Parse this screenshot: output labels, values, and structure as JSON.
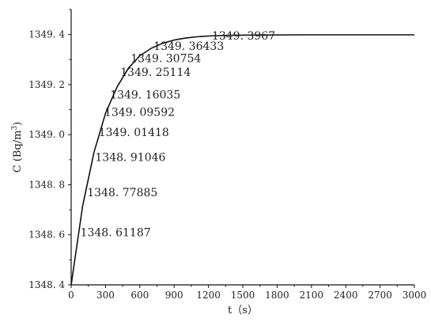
{
  "chart_data": {
    "type": "line",
    "title": "",
    "xlabel": "t（s）",
    "ylabel": "C (Bq/m³)",
    "ylabel_parts": {
      "prefix": "C (Bq/m",
      "sup": "3",
      "suffix": ")"
    },
    "xlim": [
      0,
      3000
    ],
    "ylim": [
      1348.4,
      1349.5
    ],
    "x_ticks": [
      0,
      300,
      600,
      900,
      1200,
      1500,
      1800,
      2100,
      2400,
      2700,
      3000
    ],
    "y_ticks": [
      1348.4,
      1348.6,
      1348.8,
      1349.0,
      1349.2,
      1349.4
    ],
    "x_tick_labels": [
      "0",
      "300",
      "600",
      "900",
      "1200",
      "1500",
      "1800",
      "2100",
      "2400",
      "2700",
      "3000"
    ],
    "y_tick_labels": [
      "1348. 4",
      "1348. 6",
      "1348. 8",
      "1349. 0",
      "1349. 2",
      "1349. 4"
    ],
    "grid": false,
    "legend": "none",
    "line_color": "#111111",
    "series": [
      {
        "x": [
          0,
          100,
          200,
          300,
          400,
          500,
          600,
          700,
          800,
          900,
          1000,
          1100,
          1200,
          1400,
          1600,
          2000,
          2500,
          3000
        ],
        "y": [
          1348.4,
          1348.715,
          1348.93,
          1349.085,
          1349.19,
          1349.265,
          1349.315,
          1349.345,
          1349.365,
          1349.378,
          1349.386,
          1349.391,
          1349.394,
          1349.397,
          1349.398,
          1349.399,
          1349.399,
          1349.399
        ]
      }
    ],
    "annotations": [
      {
        "text": "1348. 61187",
        "x": 80,
        "y": 1348.61
      },
      {
        "text": "1348. 77885",
        "x": 140,
        "y": 1348.77
      },
      {
        "text": "1348. 91046",
        "x": 210,
        "y": 1348.91
      },
      {
        "text": "1349. 01418",
        "x": 240,
        "y": 1349.01
      },
      {
        "text": "1349. 09592",
        "x": 290,
        "y": 1349.09
      },
      {
        "text": "1349. 16035",
        "x": 340,
        "y": 1349.16
      },
      {
        "text": "1349. 25114",
        "x": 430,
        "y": 1349.25
      },
      {
        "text": "1349. 30754",
        "x": 520,
        "y": 1349.305
      },
      {
        "text": "1349. 36433",
        "x": 720,
        "y": 1349.355
      },
      {
        "text": "1349. 3967",
        "x": 1230,
        "y": 1349.395
      }
    ]
  }
}
